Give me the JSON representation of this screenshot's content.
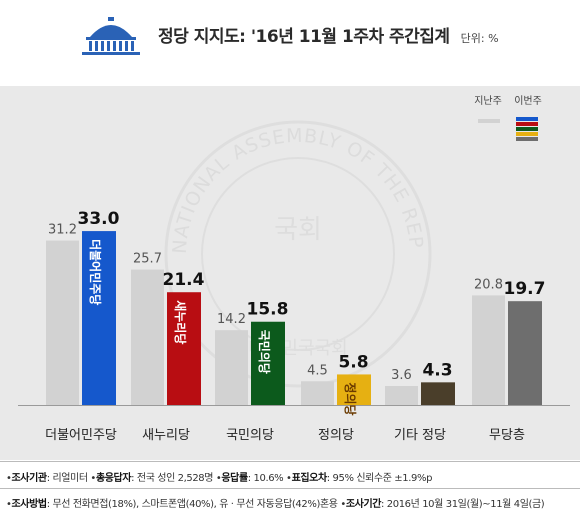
{
  "header": {
    "title": "정당 지지도: '16년 11월 1주차 주간집계",
    "unit": "단위: %"
  },
  "watermark": {
    "ring_text": "NATIONAL ASSEMBLY OF THE REPUBLIC OF KOREA",
    "center_text": "국회",
    "bottom_text": "대한민국국회"
  },
  "legend": {
    "previous": "지난주",
    "current": "이번주"
  },
  "chart_data": {
    "type": "bar",
    "categories": [
      "더불어민주당",
      "새누리당",
      "국민의당",
      "정의당",
      "기타 정당",
      "무당층"
    ],
    "series": [
      {
        "name": "지난주",
        "values": [
          31.2,
          25.7,
          14.2,
          4.5,
          3.6,
          20.8
        ],
        "color": "#d2d2d2"
      },
      {
        "name": "이번주",
        "values": [
          33.0,
          21.4,
          15.8,
          5.8,
          4.3,
          19.7
        ],
        "colors": [
          "#1558cc",
          "#b80d12",
          "#0c5a1c",
          "#e6b012",
          "#4a3e2a",
          "#6e6e6e"
        ]
      }
    ],
    "party_logos": [
      "더불어민주당",
      "새누리당",
      "국민의당",
      "정의당",
      "",
      ""
    ],
    "legend_swatch_colors": [
      "#1558cc",
      "#b80d12",
      "#0c5a1c",
      "#e6b012",
      "#6e6e6e"
    ],
    "ylim": [
      0,
      35
    ]
  },
  "footer": {
    "line1": [
      {
        "label": "조사기관",
        "value": ": 리얼미터"
      },
      {
        "label": "총응답자",
        "value": ": 전국 성인 2,528명"
      },
      {
        "label": "응답률",
        "value": ": 10.6%"
      },
      {
        "label": "표집오차",
        "value": ": 95% 신뢰수준 ±1.9%p"
      }
    ],
    "line2": [
      {
        "label": "조사방법",
        "value": ": 무선 전화면접(18%), 스마트폰앱(40%), 유 · 무선 자동응답(42%)혼용"
      },
      {
        "label": "조사기간",
        "value": ": 2016년 10월 31일(월)~11월 4일(금)"
      }
    ]
  }
}
